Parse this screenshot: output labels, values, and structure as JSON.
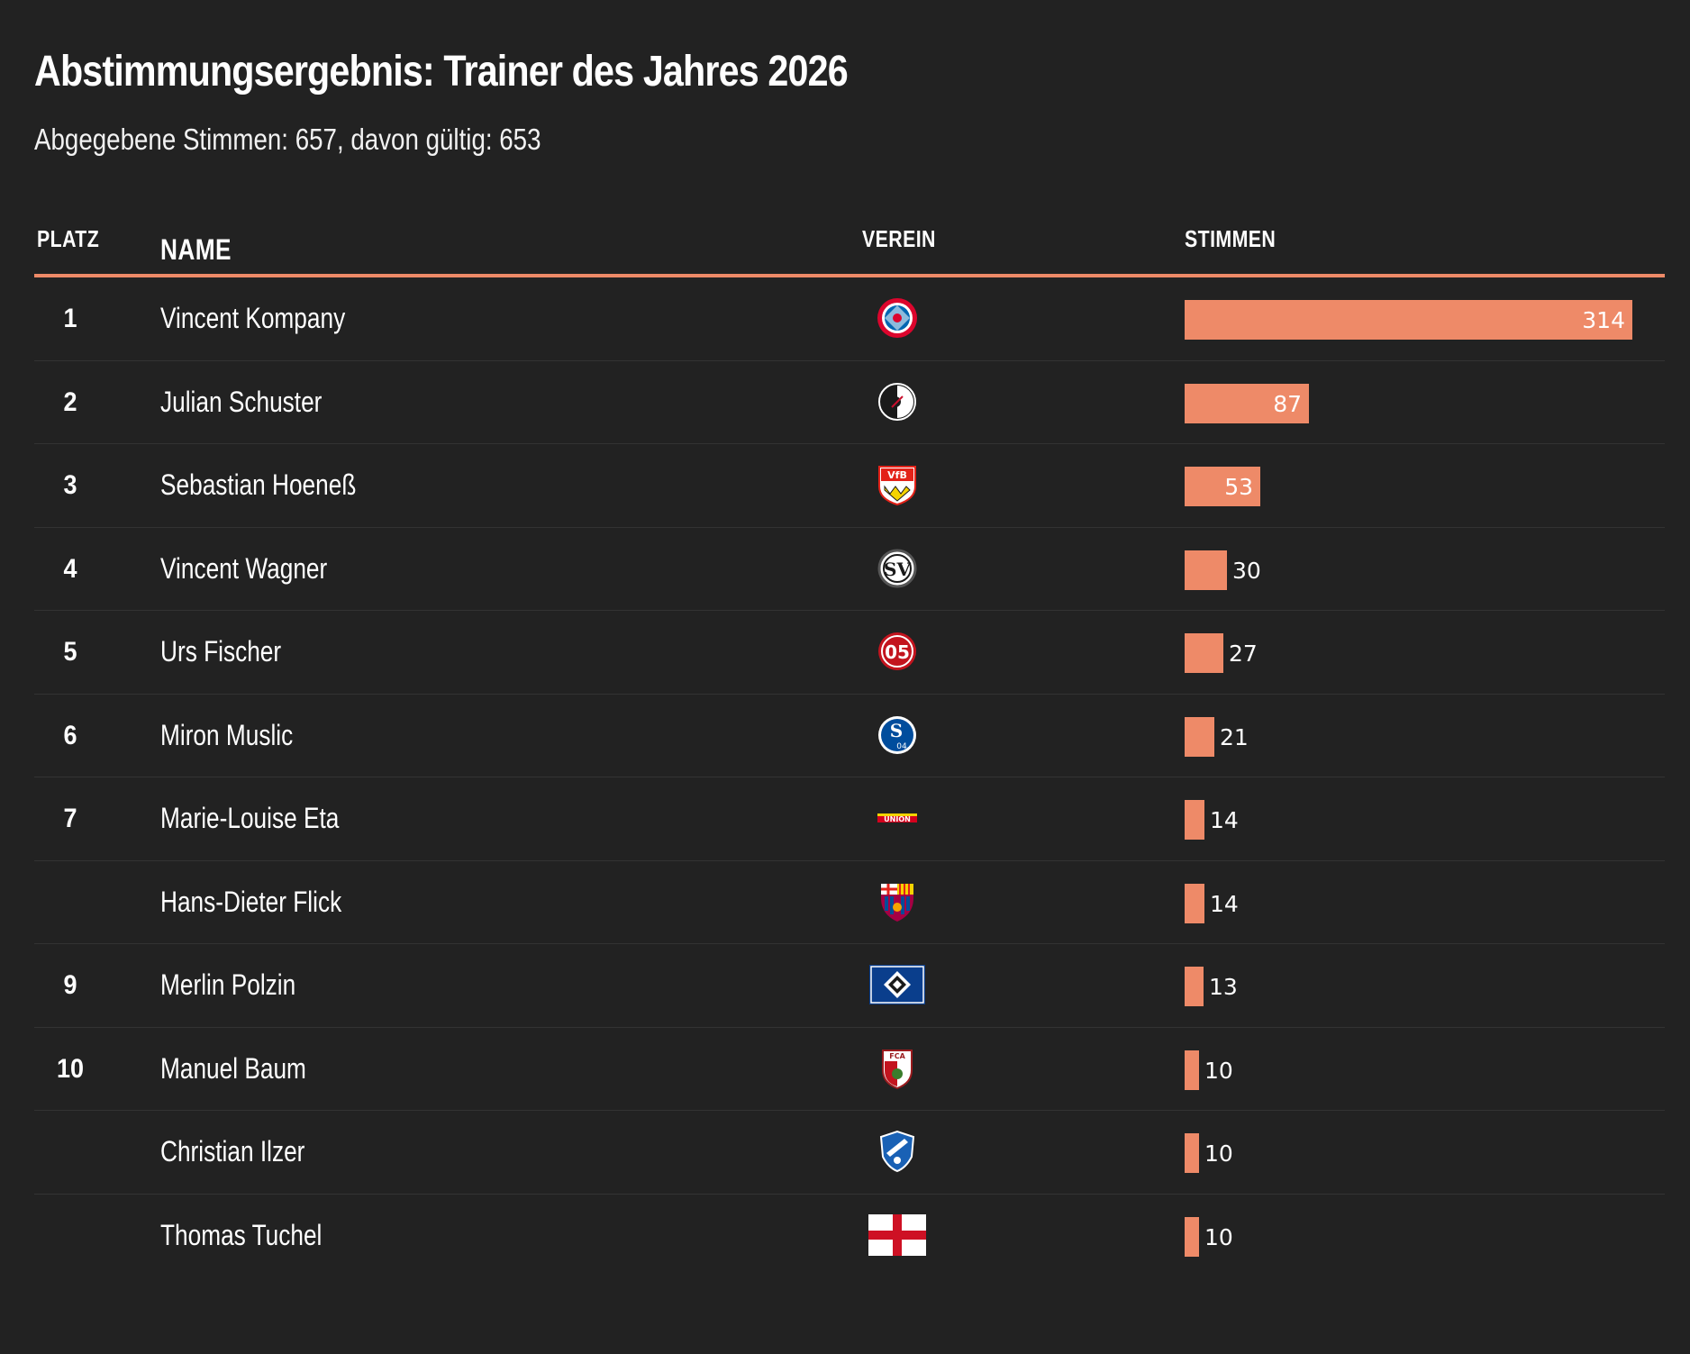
{
  "header": {
    "title": "Abstimmungsergebnis: Trainer des Jahres 2026",
    "subtitle": "Abgegebene Stimmen: 657, davon gültig: 653"
  },
  "columns": {
    "platz": "PLATZ",
    "name": "NAME",
    "verein": "VEREIN",
    "stimmen": "STIMMEN"
  },
  "colors": {
    "background": "#222222",
    "bar": "#ee8a68",
    "accent_line": "#ee8a68",
    "row_divider": "#333333",
    "text": "#ffffff"
  },
  "chart_data": {
    "type": "bar",
    "orientation": "horizontal",
    "title": "Abstimmungsergebnis: Trainer des Jahres 2026",
    "subtitle": "Abgegebene Stimmen: 657, davon gültig: 653",
    "xlim": [
      0,
      314
    ],
    "grid": false,
    "categories": [
      "Vincent Kompany",
      "Julian Schuster",
      "Sebastian Hoeneß",
      "Vincent Wagner",
      "Urs Fischer",
      "Miron Muslic",
      "Marie-Louise Eta",
      "Hans-Dieter Flick",
      "Merlin Polzin",
      "Manuel Baum",
      "Christian Ilzer",
      "Thomas Tuchel"
    ],
    "values": [
      314,
      87,
      53,
      30,
      27,
      21,
      14,
      14,
      13,
      10,
      10,
      10
    ],
    "rows": [
      {
        "rank": "1",
        "name": "Vincent Kompany",
        "club_icon": "fc-bayern-crest-icon",
        "votes": 314
      },
      {
        "rank": "2",
        "name": "Julian Schuster",
        "club_icon": "sc-freiburg-crest-icon",
        "votes": 87
      },
      {
        "rank": "3",
        "name": "Sebastian Hoeneß",
        "club_icon": "vfb-stuttgart-crest-icon",
        "votes": 53
      },
      {
        "rank": "4",
        "name": "Vincent Wagner",
        "club_icon": "sv-elversberg-crest-icon",
        "votes": 30
      },
      {
        "rank": "5",
        "name": "Urs Fischer",
        "club_icon": "mainz-05-crest-icon",
        "votes": 27
      },
      {
        "rank": "6",
        "name": "Miron Muslic",
        "club_icon": "schalke-04-crest-icon",
        "votes": 21
      },
      {
        "rank": "7",
        "name": "Marie-Louise Eta",
        "club_icon": "union-berlin-crest-icon",
        "votes": 14
      },
      {
        "rank": "",
        "name": "Hans-Dieter Flick",
        "club_icon": "fc-barcelona-crest-icon",
        "votes": 14
      },
      {
        "rank": "9",
        "name": "Merlin Polzin",
        "club_icon": "hamburger-sv-crest-icon",
        "votes": 13
      },
      {
        "rank": "10",
        "name": "Manuel Baum",
        "club_icon": "fc-augsburg-crest-icon",
        "votes": 10
      },
      {
        "rank": "",
        "name": "Christian Ilzer",
        "club_icon": "tsg-hoffenheim-crest-icon",
        "votes": 10
      },
      {
        "rank": "",
        "name": "Thomas Tuchel",
        "club_icon": "england-flag-icon",
        "votes": 10
      }
    ]
  }
}
